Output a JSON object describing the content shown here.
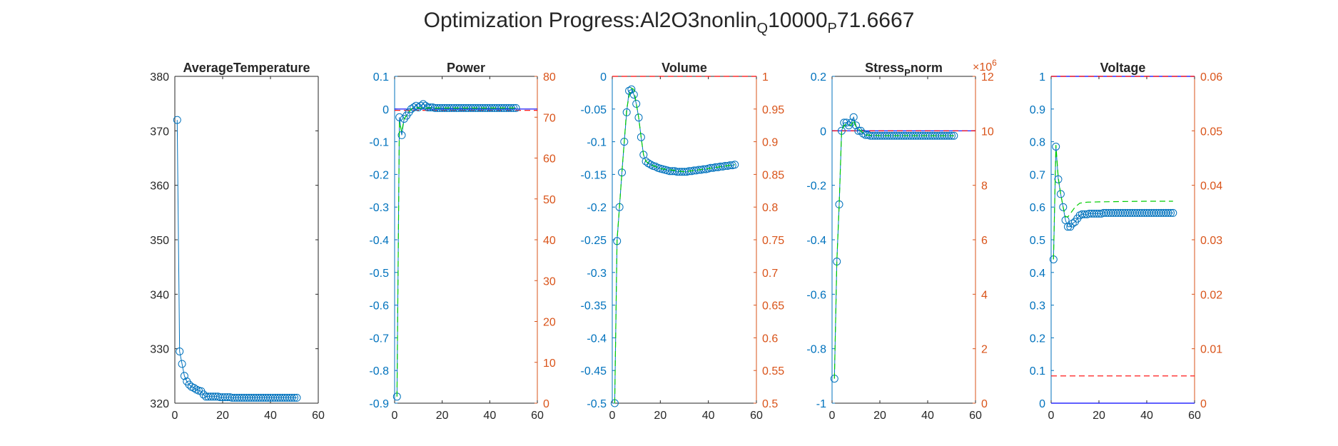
{
  "figure": {
    "title_parts": [
      "Optimization Progress:Al2O3nonlin",
      "Q",
      "10000",
      "P",
      "71.6667"
    ]
  },
  "colors": {
    "left_axis": "#0072BD",
    "right_axis": "#D95319",
    "data_marker": "#0072BD",
    "dashed_green": "#00CC00",
    "dashed_red": "#FF0000",
    "limit_blue": "#0000FF",
    "frame": "#262626"
  },
  "chart_data": [
    {
      "type": "line",
      "title": "AverageTemperature",
      "xlim": [
        0,
        60
      ],
      "xticks": [
        0,
        20,
        40,
        60
      ],
      "ylim": [
        320,
        380
      ],
      "yticks": [
        320,
        330,
        340,
        350,
        360,
        370,
        380
      ],
      "ytick_labels": [
        "320",
        "330",
        "340",
        "350",
        "360",
        "370",
        "380"
      ],
      "series": [
        {
          "style": "line-circle",
          "x": [
            1,
            2,
            3,
            4,
            5,
            6,
            7,
            8,
            9,
            10,
            11,
            12,
            13,
            14,
            15,
            16,
            17,
            18,
            19,
            20,
            21,
            22,
            23,
            24,
            25,
            26,
            27,
            28,
            29,
            30,
            31,
            32,
            33,
            34,
            35,
            36,
            37,
            38,
            39,
            40,
            41,
            42,
            43,
            44,
            45,
            46,
            47,
            48,
            49,
            50,
            51
          ],
          "y": [
            372,
            329.5,
            327.2,
            325,
            324,
            323.4,
            323,
            322.8,
            322.5,
            322.3,
            322.2,
            321.6,
            321.2,
            321.2,
            321.2,
            321.2,
            321.2,
            321.2,
            321.1,
            321.1,
            321.1,
            321.1,
            321.1,
            321,
            321,
            321,
            321,
            321,
            321,
            321,
            321,
            321,
            321,
            321,
            321,
            321,
            321,
            321,
            321,
            321,
            321,
            321,
            321,
            321,
            321,
            321,
            321,
            321,
            321,
            321,
            321
          ]
        }
      ]
    },
    {
      "type": "line",
      "title": "Power",
      "xlim": [
        0,
        60
      ],
      "xticks": [
        0,
        20,
        40,
        60
      ],
      "ylim": [
        -0.9,
        0.1
      ],
      "yticks": [
        -0.9,
        -0.8,
        -0.7,
        -0.6,
        -0.5,
        -0.4,
        -0.3,
        -0.2,
        -0.1,
        0,
        0.1
      ],
      "ytick_labels": [
        "-0.9",
        "-0.8",
        "-0.7",
        "-0.6",
        "-0.5",
        "-0.4",
        "-0.3",
        "-0.2",
        "-0.1",
        "0",
        "0.1"
      ],
      "y2lim": [
        0,
        80
      ],
      "y2ticks": [
        0,
        10,
        20,
        30,
        40,
        50,
        60,
        70,
        80
      ],
      "y2tick_labels": [
        "0",
        "10",
        "20",
        "30",
        "40",
        "50",
        "60",
        "70",
        "80"
      ],
      "series": [
        {
          "style": "line-circle",
          "x": [
            1,
            2,
            3,
            4,
            5,
            6,
            7,
            8,
            9,
            10,
            11,
            12,
            13,
            14,
            15,
            16,
            17,
            18,
            19,
            20,
            21,
            22,
            23,
            24,
            25,
            26,
            27,
            28,
            29,
            30,
            31,
            32,
            33,
            34,
            35,
            36,
            37,
            38,
            39,
            40,
            41,
            42,
            43,
            44,
            45,
            46,
            47,
            48,
            49,
            50,
            51
          ],
          "y": [
            -0.88,
            -0.025,
            -0.08,
            -0.03,
            -0.02,
            -0.01,
            0,
            0.005,
            0.01,
            0.005,
            0.01,
            0.015,
            0.01,
            0.005,
            0.005,
            0.005,
            0.003,
            0.003,
            0.003,
            0.003,
            0.003,
            0.003,
            0.003,
            0.003,
            0.003,
            0.003,
            0.003,
            0.003,
            0.003,
            0.003,
            0.003,
            0.003,
            0.003,
            0.003,
            0.003,
            0.003,
            0.003,
            0.003,
            0.003,
            0.003,
            0.003,
            0.003,
            0.003,
            0.003,
            0.003,
            0.003,
            0.003,
            0.003,
            0.003,
            0.003,
            0.003
          ]
        },
        {
          "style": "dashed-green",
          "x": [
            1,
            2,
            3,
            4,
            5,
            6,
            7,
            8,
            9,
            10,
            12,
            15,
            20,
            30,
            40,
            51
          ],
          "y": [
            -0.88,
            -0.04,
            -0.07,
            -0.03,
            -0.02,
            -0.01,
            0,
            0.003,
            0.005,
            0.003,
            0.003,
            0.003,
            0.003,
            0.003,
            0.003,
            0.003
          ]
        }
      ],
      "hlines": [
        {
          "axis": "left",
          "y": 0,
          "style": "limit-blue"
        },
        {
          "axis": "right",
          "y": 71.6667,
          "style": "dashed-red"
        }
      ]
    },
    {
      "type": "line",
      "title": "Volume",
      "xlim": [
        0,
        60
      ],
      "xticks": [
        0,
        20,
        40,
        60
      ],
      "ylim": [
        -0.5,
        0
      ],
      "yticks": [
        -0.5,
        -0.45,
        -0.4,
        -0.35,
        -0.3,
        -0.25,
        -0.2,
        -0.15,
        -0.1,
        -0.05,
        0
      ],
      "ytick_labels": [
        "-0.5",
        "-0.45",
        "-0.4",
        "-0.35",
        "-0.3",
        "-0.25",
        "-0.2",
        "-0.15",
        "-0.1",
        "-0.05",
        "0"
      ],
      "y2lim": [
        0.5,
        1
      ],
      "y2ticks": [
        0.5,
        0.55,
        0.6,
        0.65,
        0.7,
        0.75,
        0.8,
        0.85,
        0.9,
        0.95,
        1
      ],
      "y2tick_labels": [
        "0.5",
        "0.55",
        "0.6",
        "0.65",
        "0.7",
        "0.75",
        "0.8",
        "0.85",
        "0.9",
        "0.95",
        "1"
      ],
      "series": [
        {
          "style": "line-circle",
          "x": [
            1,
            2,
            3,
            4,
            5,
            6,
            7,
            8,
            9,
            10,
            11,
            12,
            13,
            14,
            15,
            16,
            17,
            18,
            19,
            20,
            21,
            22,
            23,
            24,
            25,
            26,
            27,
            28,
            29,
            30,
            31,
            32,
            33,
            34,
            35,
            36,
            37,
            38,
            39,
            40,
            41,
            42,
            43,
            44,
            45,
            46,
            47,
            48,
            49,
            50,
            51
          ],
          "y": [
            -0.5,
            -0.252,
            -0.2,
            -0.147,
            -0.1,
            -0.055,
            -0.022,
            -0.02,
            -0.028,
            -0.042,
            -0.063,
            -0.093,
            -0.12,
            -0.13,
            -0.133,
            -0.135,
            -0.137,
            -0.138,
            -0.14,
            -0.141,
            -0.142,
            -0.143,
            -0.144,
            -0.145,
            -0.145,
            -0.145,
            -0.146,
            -0.146,
            -0.146,
            -0.146,
            -0.146,
            -0.145,
            -0.145,
            -0.144,
            -0.144,
            -0.143,
            -0.143,
            -0.142,
            -0.142,
            -0.141,
            -0.14,
            -0.14,
            -0.139,
            -0.139,
            -0.138,
            -0.138,
            -0.137,
            -0.137,
            -0.136,
            -0.136,
            -0.135
          ]
        },
        {
          "style": "dashed-green",
          "x": [
            1,
            2,
            3,
            4,
            5,
            6,
            7,
            8,
            9,
            10,
            11,
            12,
            13,
            14,
            16,
            20,
            30,
            40,
            51
          ],
          "y": [
            -0.5,
            -0.25,
            -0.2,
            -0.147,
            -0.1,
            -0.05,
            -0.03,
            -0.018,
            -0.02,
            -0.042,
            -0.063,
            -0.093,
            -0.12,
            -0.13,
            -0.135,
            -0.141,
            -0.146,
            -0.141,
            -0.135
          ]
        }
      ],
      "hlines": [
        {
          "axis": "right",
          "y": 1,
          "style": "dashed-red"
        }
      ]
    },
    {
      "type": "line",
      "title_parts": [
        "Stress",
        "P",
        "norm"
      ],
      "xlim": [
        0,
        60
      ],
      "xticks": [
        0,
        20,
        40,
        60
      ],
      "ylim": [
        -1,
        0.2
      ],
      "yticks": [
        -1,
        -0.8,
        -0.6,
        -0.4,
        -0.2,
        0,
        0.2
      ],
      "ytick_labels": [
        "-1",
        "-0.8",
        "-0.6",
        "-0.4",
        "-0.2",
        "0",
        "0.2"
      ],
      "y2lim": [
        0,
        12
      ],
      "y2ticks": [
        0,
        2,
        4,
        6,
        8,
        10,
        12
      ],
      "y2tick_labels": [
        "0",
        "2",
        "4",
        "6",
        "8",
        "10",
        "12"
      ],
      "y2_exponent_base": "×10",
      "y2_exponent": "6",
      "series": [
        {
          "style": "line-circle",
          "x": [
            1,
            2,
            3,
            4,
            5,
            6,
            7,
            8,
            9,
            10,
            11,
            12,
            13,
            14,
            15,
            16,
            17,
            18,
            19,
            20,
            21,
            22,
            23,
            24,
            25,
            26,
            27,
            28,
            29,
            30,
            31,
            32,
            33,
            34,
            35,
            36,
            37,
            38,
            39,
            40,
            41,
            42,
            43,
            44,
            45,
            46,
            47,
            48,
            49,
            50,
            51
          ],
          "y": [
            -0.91,
            -0.48,
            -0.27,
            0,
            0.03,
            0.03,
            0.02,
            0.03,
            0.05,
            0.02,
            0,
            0,
            -0.01,
            -0.015,
            -0.015,
            -0.018,
            -0.018,
            -0.018,
            -0.018,
            -0.018,
            -0.018,
            -0.018,
            -0.018,
            -0.018,
            -0.018,
            -0.018,
            -0.018,
            -0.018,
            -0.018,
            -0.018,
            -0.018,
            -0.018,
            -0.018,
            -0.018,
            -0.018,
            -0.018,
            -0.018,
            -0.018,
            -0.018,
            -0.018,
            -0.018,
            -0.018,
            -0.018,
            -0.018,
            -0.018,
            -0.018,
            -0.018,
            -0.018,
            -0.018,
            -0.018,
            -0.018
          ]
        },
        {
          "style": "dashed-green",
          "x": [
            1,
            2,
            3,
            4,
            5,
            6,
            8,
            9,
            10,
            12,
            14,
            20,
            30,
            40,
            51
          ],
          "y": [
            -0.91,
            -0.48,
            -0.27,
            0,
            0.02,
            0.025,
            0.02,
            0.04,
            0.015,
            0,
            -0.015,
            -0.018,
            -0.018,
            -0.018,
            -0.018
          ]
        }
      ],
      "hlines": [
        {
          "axis": "left",
          "y": 0,
          "style": "limit-blue"
        },
        {
          "axis": "right",
          "y": 10,
          "style": "dashed-red"
        }
      ]
    },
    {
      "type": "line",
      "title": "Voltage",
      "xlim": [
        0,
        60
      ],
      "xticks": [
        0,
        20,
        40,
        60
      ],
      "ylim": [
        0,
        1
      ],
      "yticks": [
        0,
        0.1,
        0.2,
        0.3,
        0.4,
        0.5,
        0.6,
        0.7,
        0.8,
        0.9,
        1
      ],
      "ytick_labels": [
        "0",
        "0.1",
        "0.2",
        "0.3",
        "0.4",
        "0.5",
        "0.6",
        "0.7",
        "0.8",
        "0.9",
        "1"
      ],
      "y2lim": [
        0,
        0.06
      ],
      "y2ticks": [
        0,
        0.01,
        0.02,
        0.03,
        0.04,
        0.05,
        0.06
      ],
      "y2tick_labels": [
        "0",
        "0.01",
        "0.02",
        "0.03",
        "0.04",
        "0.05",
        "0.06"
      ],
      "series": [
        {
          "style": "line-circle",
          "x": [
            1,
            2,
            3,
            4,
            5,
            6,
            7,
            8,
            9,
            10,
            11,
            12,
            13,
            14,
            15,
            16,
            17,
            18,
            19,
            20,
            21,
            22,
            23,
            24,
            25,
            26,
            27,
            28,
            29,
            30,
            31,
            32,
            33,
            34,
            35,
            36,
            37,
            38,
            39,
            40,
            41,
            42,
            43,
            44,
            45,
            46,
            47,
            48,
            49,
            50,
            51
          ],
          "y": [
            0.44,
            0.785,
            0.685,
            0.64,
            0.6,
            0.56,
            0.54,
            0.54,
            0.55,
            0.555,
            0.565,
            0.575,
            0.578,
            0.578,
            0.578,
            0.58,
            0.58,
            0.58,
            0.58,
            0.58,
            0.58,
            0.582,
            0.582,
            0.582,
            0.582,
            0.582,
            0.582,
            0.582,
            0.582,
            0.582,
            0.582,
            0.582,
            0.582,
            0.582,
            0.582,
            0.582,
            0.582,
            0.582,
            0.582,
            0.582,
            0.582,
            0.582,
            0.582,
            0.582,
            0.582,
            0.582,
            0.582,
            0.582,
            0.582,
            0.582,
            0.582
          ]
        },
        {
          "style": "dashed-green",
          "x": [
            1,
            2,
            3,
            4,
            5,
            6,
            7,
            8,
            9,
            10,
            12,
            15,
            20,
            30,
            40,
            51
          ],
          "y": [
            0.44,
            0.79,
            0.69,
            0.64,
            0.6,
            0.57,
            0.57,
            0.58,
            0.59,
            0.6,
            0.612,
            0.615,
            0.616,
            0.617,
            0.618,
            0.618
          ]
        }
      ],
      "hlines": [
        {
          "axis": "left",
          "y": 0,
          "style": "limit-blue"
        },
        {
          "axis": "left",
          "y": 1,
          "style": "limit-blue"
        },
        {
          "axis": "right",
          "y": 0.005,
          "style": "dashed-red"
        },
        {
          "axis": "right",
          "y": 0.06,
          "style": "dashed-red"
        }
      ]
    }
  ]
}
